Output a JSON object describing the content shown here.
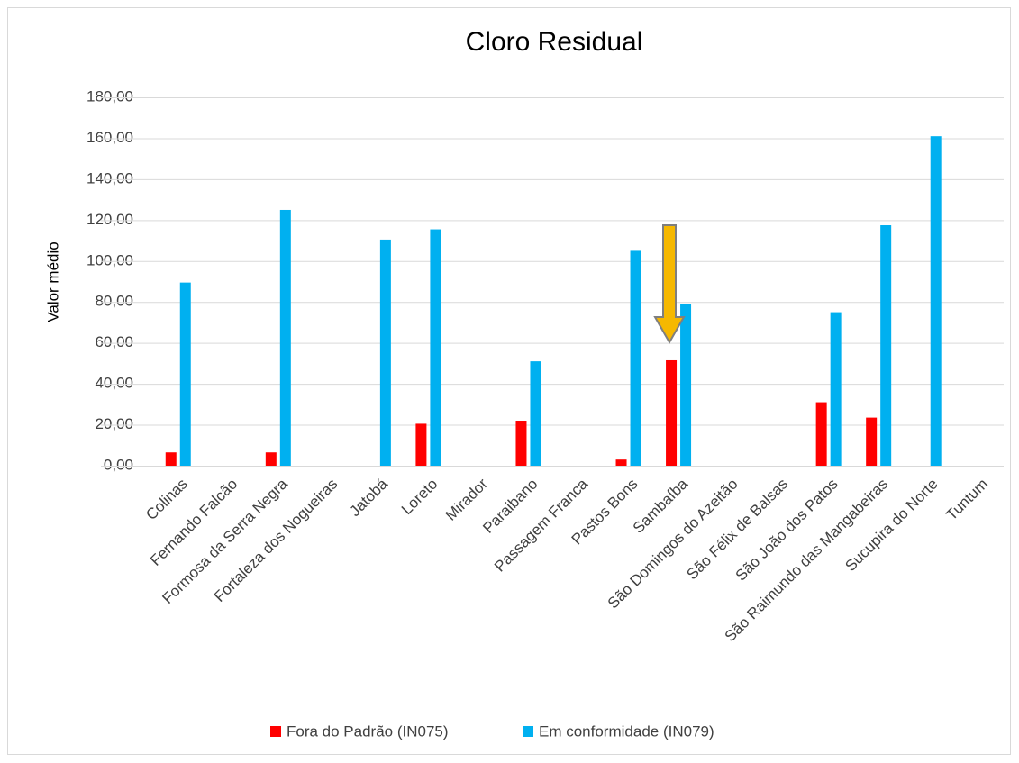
{
  "chart_data": {
    "type": "bar",
    "title": "Cloro Residual",
    "y_label": "Valor médio",
    "categories": [
      "Colinas",
      "Fernando Falcão",
      "Formosa da Serra Negra",
      "Fortaleza dos Nogueiras",
      "Jatobá",
      "Loreto",
      "Mirador",
      "Paraibano",
      "Passagem Franca",
      "Pastos Bons",
      "Sambaíba",
      "São Domingos do Azeitão",
      "São Félix de Balsas",
      "São João dos Patos",
      "São Raimundo das Mangabeiras",
      "Sucupira do Norte",
      "Tuntum"
    ],
    "series": [
      {
        "name": "Fora do Padrão (IN075)",
        "color": "#ff0000",
        "values": [
          6.5,
          null,
          6.5,
          null,
          null,
          20.5,
          null,
          22,
          null,
          3,
          51.5,
          null,
          null,
          31,
          23.5,
          null,
          null
        ]
      },
      {
        "name": "Em conformidade (IN079)",
        "color": "#00b0f0",
        "values": [
          89.5,
          null,
          125,
          null,
          110.5,
          115.5,
          null,
          51,
          null,
          105,
          79,
          null,
          null,
          75,
          117.5,
          161,
          null
        ]
      }
    ],
    "ylim": [
      0,
      180
    ],
    "yticks": [
      {
        "value": 0,
        "label": "0,00"
      },
      {
        "value": 20,
        "label": "20,00"
      },
      {
        "value": 40,
        "label": "40,00"
      },
      {
        "value": 60,
        "label": "60,00"
      },
      {
        "value": 80,
        "label": "80,00"
      },
      {
        "value": 100,
        "label": "100,00"
      },
      {
        "value": 120,
        "label": "120,00"
      },
      {
        "value": 140,
        "label": "140,00"
      },
      {
        "value": 160,
        "label": "160,00"
      },
      {
        "value": 180,
        "label": "180,00"
      }
    ],
    "grid": true,
    "legend": "bottom"
  }
}
